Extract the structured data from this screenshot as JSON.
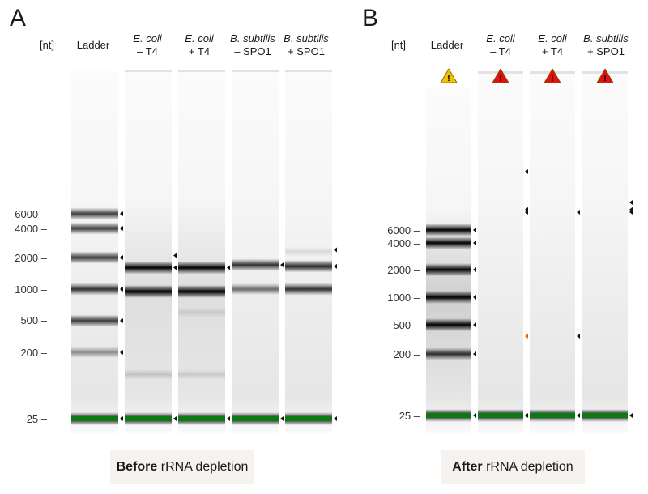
{
  "panels": [
    {
      "id": "A",
      "letter": "A",
      "unit_label": "[nt]",
      "caption_bold": "Before",
      "caption_rest": " rRNA depletion",
      "ladder_ticks": [
        "6000",
        "4000",
        "2000",
        "1000",
        "500",
        "200",
        "25"
      ],
      "lanes": [
        {
          "name": "Ladder",
          "line1": "Ladder",
          "line2": "",
          "italic": false,
          "bands": [
            {
              "size": 6000,
              "intensity": 0.75
            },
            {
              "size": 4000,
              "intensity": 0.75
            },
            {
              "size": 2000,
              "intensity": 0.75
            },
            {
              "size": 1000,
              "intensity": 0.8
            },
            {
              "size": 500,
              "intensity": 0.75
            },
            {
              "size": 200,
              "intensity": 0.4
            },
            {
              "size": 25,
              "intensity": 1,
              "marker": true
            }
          ],
          "peaks": [
            6000,
            4000,
            2000,
            1000,
            500,
            200,
            25
          ],
          "warning": null
        },
        {
          "name": "E. coli - T4",
          "line1": "E. coli",
          "line2": "– T4",
          "italic": true,
          "bands": [
            {
              "size": 1600,
              "intensity": 1
            },
            {
              "size": 950,
              "intensity": 1
            },
            {
              "size": 100,
              "intensity": 0.15
            },
            {
              "size": 25,
              "intensity": 1,
              "marker": true
            }
          ],
          "peaks": [
            2100,
            1600,
            25
          ],
          "warning": null
        },
        {
          "name": "E. coli + T4",
          "line1": "E. coli",
          "line2": "+ T4",
          "italic": true,
          "bands": [
            {
              "size": 1600,
              "intensity": 1
            },
            {
              "size": 950,
              "intensity": 1
            },
            {
              "size": 600,
              "intensity": 0.1
            },
            {
              "size": 100,
              "intensity": 0.12
            },
            {
              "size": 25,
              "intensity": 1,
              "marker": true
            }
          ],
          "peaks": [
            1600,
            25
          ],
          "warning": null
        },
        {
          "name": "B. subtilis - SPO1",
          "line1": "B. subtilis",
          "line2": "– SPO1",
          "italic": true,
          "bands": [
            {
              "size": 1700,
              "intensity": 0.8
            },
            {
              "size": 1000,
              "intensity": 0.55
            },
            {
              "size": 25,
              "intensity": 1,
              "marker": true
            }
          ],
          "peaks": [
            1700,
            25
          ],
          "warning": null
        },
        {
          "name": "B. subtilis + SPO1",
          "line1": "B. subtilis",
          "line2": "+ SPO1",
          "italic": true,
          "bands": [
            {
              "size": 2300,
              "intensity": 0.1
            },
            {
              "size": 1650,
              "intensity": 0.85
            },
            {
              "size": 1000,
              "intensity": 0.8
            },
            {
              "size": 25,
              "intensity": 1,
              "marker": true
            }
          ],
          "peaks": [
            2400,
            1650,
            25
          ],
          "warning": null
        }
      ]
    },
    {
      "id": "B",
      "letter": "B",
      "unit_label": "[nt]",
      "caption_bold": "After",
      "caption_rest": " rRNA depletion",
      "ladder_ticks": [
        "6000",
        "4000",
        "2000",
        "1000",
        "500",
        "200",
        "25"
      ],
      "lanes": [
        {
          "name": "Ladder",
          "line1": "Ladder",
          "line2": "",
          "italic": false,
          "bands": [
            {
              "size": 6000,
              "intensity": 1
            },
            {
              "size": 4000,
              "intensity": 1
            },
            {
              "size": 2000,
              "intensity": 1
            },
            {
              "size": 1000,
              "intensity": 1
            },
            {
              "size": 500,
              "intensity": 1
            },
            {
              "size": 200,
              "intensity": 0.8
            },
            {
              "size": 25,
              "intensity": 1,
              "marker": true
            }
          ],
          "peaks": [
            6000,
            4000,
            2000,
            1000,
            500,
            200,
            25
          ],
          "warning": "yellow"
        },
        {
          "name": "E. coli - T4",
          "line1": "E. coli",
          "line2": "– T4",
          "italic": true,
          "bands": [
            {
              "size": 25,
              "intensity": 1,
              "marker": true
            }
          ],
          "peaks": [
            15000,
            10000,
            9500,
            350,
            25
          ],
          "warning": "red"
        },
        {
          "name": "E. coli + T4",
          "line1": "E. coli",
          "line2": "+ T4",
          "italic": true,
          "bands": [
            {
              "size": 25,
              "intensity": 1,
              "marker": true
            }
          ],
          "peaks": [
            9500,
            350,
            25
          ],
          "warning": "red"
        },
        {
          "name": "B. subtilis + SPO1",
          "line1": "B. subtilis",
          "line2": "+ SPO1",
          "italic": true,
          "bands": [
            {
              "size": 25,
              "intensity": 1,
              "marker": true
            }
          ],
          "peaks": [
            11500,
            10000,
            9500,
            25
          ],
          "warning": "red"
        }
      ]
    }
  ],
  "colors": {
    "marker_green": "#0a7a12",
    "warning_yellow": "#f2c200",
    "warning_red": "#e01010",
    "caption_bg": "#f5f2ef",
    "peak_orange": "#ff5a1a"
  }
}
